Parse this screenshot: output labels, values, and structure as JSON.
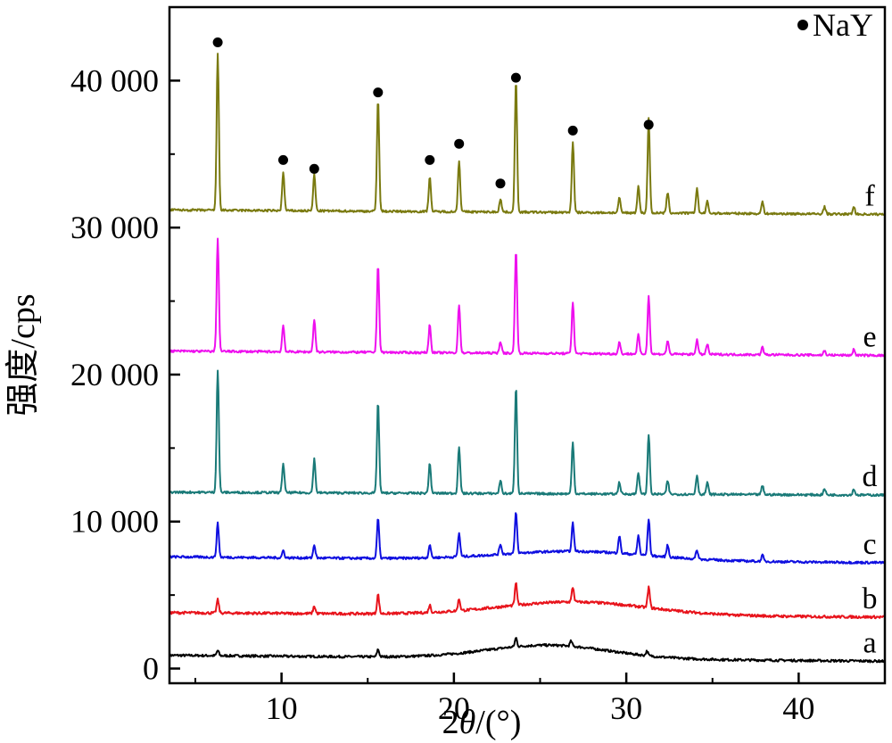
{
  "chart_data": {
    "type": "line",
    "title": "",
    "xlabel_parts": {
      "prefix": "2",
      "italic": "θ",
      "suffix": "/(°)"
    },
    "ylabel": "强度/cps",
    "xlim": [
      3.5,
      45
    ],
    "ylim": [
      -1000,
      45000
    ],
    "x_ticks": [
      10,
      20,
      30,
      40
    ],
    "x_tick_labels": [
      "10",
      "20",
      "30",
      "40"
    ],
    "y_ticks": [
      0,
      10000,
      20000,
      30000,
      40000
    ],
    "y_tick_labels": [
      "0",
      "10 000",
      "20 000",
      "30 000",
      "40 000"
    ],
    "grid": false,
    "legend": {
      "label": "NaY",
      "placement": "top-right",
      "marker": "filled-circle"
    },
    "series": [
      {
        "name": "a",
        "color": "#000000",
        "baseline_start": 900,
        "baseline_end": 500,
        "hump": {
          "center": 25.5,
          "width": 5,
          "height": 900
        },
        "noise": 160,
        "peaks": [
          [
            6.3,
            350
          ],
          [
            15.6,
            500
          ],
          [
            23.6,
            600
          ],
          [
            26.8,
            350
          ],
          [
            31.2,
            300
          ]
        ]
      },
      {
        "name": "b",
        "color": "#e8141c",
        "baseline_start": 3800,
        "baseline_end": 3500,
        "hump": {
          "center": 27,
          "width": 6,
          "height": 900
        },
        "noise": 180,
        "peaks": [
          [
            6.3,
            900
          ],
          [
            11.9,
            500
          ],
          [
            15.6,
            1300
          ],
          [
            18.6,
            500
          ],
          [
            20.3,
            800
          ],
          [
            23.6,
            1500
          ],
          [
            26.9,
            1000
          ],
          [
            31.3,
            1400
          ]
        ]
      },
      {
        "name": "c",
        "color": "#1010e0",
        "baseline_start": 7600,
        "baseline_end": 7200,
        "hump": {
          "center": 27,
          "width": 6,
          "height": 600
        },
        "noise": 160,
        "peaks": [
          [
            6.3,
            2300
          ],
          [
            10.1,
            500
          ],
          [
            11.9,
            900
          ],
          [
            15.6,
            2700
          ],
          [
            18.6,
            900
          ],
          [
            20.3,
            1600
          ],
          [
            22.7,
            700
          ],
          [
            23.6,
            2800
          ],
          [
            26.9,
            1900
          ],
          [
            29.6,
            1200
          ],
          [
            30.7,
            1300
          ],
          [
            31.3,
            2500
          ],
          [
            32.4,
            800
          ],
          [
            34.1,
            600
          ],
          [
            37.9,
            400
          ]
        ]
      },
      {
        "name": "d",
        "color": "#1a7a78",
        "baseline_start": 12000,
        "baseline_end": 11800,
        "hump": {
          "center": 27,
          "width": 6,
          "height": 0
        },
        "noise": 150,
        "peaks": [
          [
            6.3,
            8300
          ],
          [
            10.1,
            2000
          ],
          [
            11.9,
            2300
          ],
          [
            15.6,
            6200
          ],
          [
            18.6,
            2000
          ],
          [
            20.3,
            3200
          ],
          [
            22.7,
            900
          ],
          [
            23.6,
            7300
          ],
          [
            26.9,
            3500
          ],
          [
            29.6,
            800
          ],
          [
            30.7,
            1500
          ],
          [
            31.3,
            4100
          ],
          [
            32.4,
            900
          ],
          [
            34.1,
            1300
          ],
          [
            34.7,
            800
          ],
          [
            37.9,
            600
          ],
          [
            41.5,
            400
          ],
          [
            43.2,
            400
          ]
        ]
      },
      {
        "name": "e",
        "color": "#ee10ee",
        "baseline_start": 21600,
        "baseline_end": 21300,
        "hump": {
          "center": 27,
          "width": 6,
          "height": 0
        },
        "noise": 150,
        "peaks": [
          [
            6.3,
            7600
          ],
          [
            10.1,
            1800
          ],
          [
            11.9,
            2200
          ],
          [
            15.6,
            6000
          ],
          [
            18.6,
            1900
          ],
          [
            20.3,
            3300
          ],
          [
            22.7,
            800
          ],
          [
            23.6,
            7100
          ],
          [
            26.9,
            3500
          ],
          [
            29.6,
            800
          ],
          [
            30.7,
            1300
          ],
          [
            31.3,
            4000
          ],
          [
            32.4,
            900
          ],
          [
            34.1,
            1000
          ],
          [
            34.7,
            700
          ],
          [
            37.9,
            500
          ],
          [
            41.5,
            300
          ],
          [
            43.2,
            400
          ]
        ]
      },
      {
        "name": "f",
        "color": "#7a7a10",
        "baseline_start": 31200,
        "baseline_end": 30900,
        "hump": {
          "center": 27,
          "width": 6,
          "height": 0
        },
        "noise": 150,
        "peaks": [
          [
            6.3,
            10600
          ],
          [
            10.1,
            2600
          ],
          [
            11.9,
            2500
          ],
          [
            15.6,
            7700
          ],
          [
            18.6,
            2400
          ],
          [
            20.3,
            3500
          ],
          [
            22.7,
            900
          ],
          [
            23.6,
            9000
          ],
          [
            26.9,
            4800
          ],
          [
            29.6,
            1000
          ],
          [
            30.7,
            1800
          ],
          [
            31.3,
            6400
          ],
          [
            32.4,
            1400
          ],
          [
            34.1,
            1700
          ],
          [
            34.7,
            800
          ],
          [
            37.9,
            800
          ],
          [
            41.5,
            500
          ],
          [
            43.2,
            500
          ]
        ]
      }
    ],
    "nay_markers": [
      {
        "x": 6.3,
        "y": 42600
      },
      {
        "x": 10.1,
        "y": 34600
      },
      {
        "x": 11.9,
        "y": 34000
      },
      {
        "x": 15.6,
        "y": 39200
      },
      {
        "x": 18.6,
        "y": 34600
      },
      {
        "x": 20.3,
        "y": 35700
      },
      {
        "x": 22.7,
        "y": 33000
      },
      {
        "x": 23.6,
        "y": 40200
      },
      {
        "x": 26.9,
        "y": 36600
      },
      {
        "x": 31.3,
        "y": 37000
      }
    ]
  }
}
